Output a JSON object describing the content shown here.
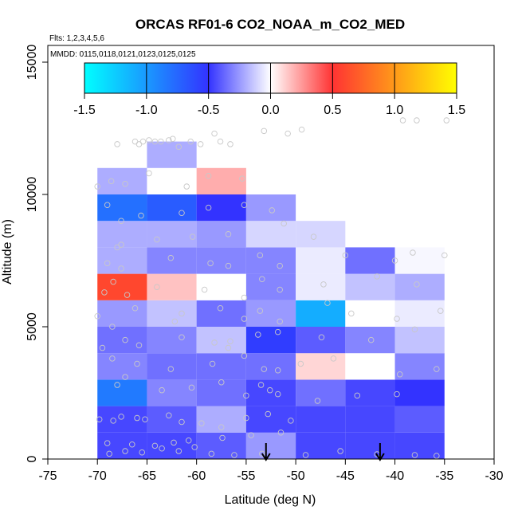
{
  "chart_data": {
    "type": "heatmap",
    "title": "ORCAS RF01-6 CO2_NOAA_m_CO2_MED",
    "subtitle_flights": "Flts: 1,2,3,4,5,6",
    "subtitle_dates": "MMDD: 0115,0118,0121,0123,0125,0125",
    "xlabel": "Latitude (deg N)",
    "ylabel": "Altitude (m)",
    "xlim": [
      -75,
      -30
    ],
    "ylim": [
      0,
      16000
    ],
    "x_ticks": [
      -75,
      -70,
      -65,
      -60,
      -55,
      -50,
      -45,
      -40,
      -35,
      -30
    ],
    "y_ticks": [
      0,
      5000,
      10000,
      15000
    ],
    "colorbar": {
      "min": -1.5,
      "max": 1.5,
      "ticks": [
        "-1.5",
        "-1.0",
        "-0.5",
        "0.0",
        "0.5",
        "1.0",
        "1.5"
      ],
      "stops": [
        "#00ffff",
        "#3333ff",
        "#ffffff",
        "#ff3333",
        "#ffff00"
      ]
    },
    "cell_width_deg": 5,
    "cell_height_m": 1000,
    "cells": [
      {
        "lat": -67.5,
        "alt": 500,
        "value": -0.45
      },
      {
        "lat": -62.5,
        "alt": 500,
        "value": -0.45
      },
      {
        "lat": -57.5,
        "alt": 500,
        "value": -0.4
      },
      {
        "lat": -52.5,
        "alt": 500,
        "value": -0.25
      },
      {
        "lat": -47.5,
        "alt": 500,
        "value": -0.45
      },
      {
        "lat": -42.5,
        "alt": 500,
        "value": -0.45
      },
      {
        "lat": -37.5,
        "alt": 500,
        "value": -0.45
      },
      {
        "lat": -67.5,
        "alt": 1500,
        "value": -0.45
      },
      {
        "lat": -62.5,
        "alt": 1500,
        "value": -0.4
      },
      {
        "lat": -57.5,
        "alt": 1500,
        "value": -0.2
      },
      {
        "lat": -52.5,
        "alt": 1500,
        "value": -0.45
      },
      {
        "lat": -47.5,
        "alt": 1500,
        "value": -0.45
      },
      {
        "lat": -42.5,
        "alt": 1500,
        "value": -0.45
      },
      {
        "lat": -37.5,
        "alt": 1500,
        "value": -0.4
      },
      {
        "lat": -67.5,
        "alt": 2500,
        "value": -0.85
      },
      {
        "lat": -62.5,
        "alt": 2500,
        "value": -0.3
      },
      {
        "lat": -57.5,
        "alt": 2500,
        "value": -0.35
      },
      {
        "lat": -52.5,
        "alt": 2500,
        "value": -0.45
      },
      {
        "lat": -47.5,
        "alt": 2500,
        "value": -0.35
      },
      {
        "lat": -42.5,
        "alt": 2500,
        "value": -0.45
      },
      {
        "lat": -37.5,
        "alt": 2500,
        "value": -0.5
      },
      {
        "lat": -67.5,
        "alt": 3500,
        "value": -0.3
      },
      {
        "lat": -62.5,
        "alt": 3500,
        "value": -0.35
      },
      {
        "lat": -57.5,
        "alt": 3500,
        "value": -0.35
      },
      {
        "lat": -52.5,
        "alt": 3500,
        "value": -0.35
      },
      {
        "lat": -47.5,
        "alt": 3500,
        "value": 0.1
      },
      {
        "lat": -42.5,
        "alt": 3500,
        "value": 0.0
      },
      {
        "lat": -37.5,
        "alt": 3500,
        "value": -0.3
      },
      {
        "lat": -67.5,
        "alt": 4500,
        "value": -0.35
      },
      {
        "lat": -62.5,
        "alt": 4500,
        "value": -0.3
      },
      {
        "lat": -57.5,
        "alt": 4500,
        "value": -0.15
      },
      {
        "lat": -52.5,
        "alt": 4500,
        "value": -0.55
      },
      {
        "lat": -47.5,
        "alt": 4500,
        "value": -0.4
      },
      {
        "lat": -42.5,
        "alt": 4500,
        "value": -0.3
      },
      {
        "lat": -37.5,
        "alt": 4500,
        "value": -0.15
      },
      {
        "lat": -67.5,
        "alt": 5500,
        "value": -0.25
      },
      {
        "lat": -62.5,
        "alt": 5500,
        "value": -0.15
      },
      {
        "lat": -57.5,
        "alt": 5500,
        "value": -0.35
      },
      {
        "lat": -52.5,
        "alt": 5500,
        "value": -0.25
      },
      {
        "lat": -47.5,
        "alt": 5500,
        "value": -1.1
      },
      {
        "lat": -42.5,
        "alt": 5500,
        "value": 0.0
      },
      {
        "lat": -37.5,
        "alt": 5500,
        "value": -0.05
      },
      {
        "lat": -67.5,
        "alt": 6500,
        "value": 0.6
      },
      {
        "lat": -62.5,
        "alt": 6500,
        "value": 0.15
      },
      {
        "lat": -57.5,
        "alt": 6500,
        "value": 0.0
      },
      {
        "lat": -52.5,
        "alt": 6500,
        "value": -0.3
      },
      {
        "lat": -47.5,
        "alt": 6500,
        "value": -0.05
      },
      {
        "lat": -42.5,
        "alt": 6500,
        "value": -0.15
      },
      {
        "lat": -37.5,
        "alt": 6500,
        "value": -0.2
      },
      {
        "lat": -67.5,
        "alt": 7500,
        "value": -0.2
      },
      {
        "lat": -62.5,
        "alt": 7500,
        "value": -0.3
      },
      {
        "lat": -57.5,
        "alt": 7500,
        "value": -0.3
      },
      {
        "lat": -52.5,
        "alt": 7500,
        "value": -0.3
      },
      {
        "lat": -47.5,
        "alt": 7500,
        "value": -0.05
      },
      {
        "lat": -42.5,
        "alt": 7500,
        "value": -0.35
      },
      {
        "lat": -37.5,
        "alt": 7500,
        "value": -0.02
      },
      {
        "lat": -67.5,
        "alt": 8500,
        "value": -0.2
      },
      {
        "lat": -62.5,
        "alt": 8500,
        "value": -0.2
      },
      {
        "lat": -57.5,
        "alt": 8500,
        "value": -0.25
      },
      {
        "lat": -52.5,
        "alt": 8500,
        "value": -0.1
      },
      {
        "lat": -47.5,
        "alt": 8500,
        "value": -0.1
      },
      {
        "lat": -67.5,
        "alt": 9500,
        "value": -0.8
      },
      {
        "lat": -62.5,
        "alt": 9500,
        "value": -0.7
      },
      {
        "lat": -57.5,
        "alt": 9500,
        "value": -0.5
      },
      {
        "lat": -52.5,
        "alt": 9500,
        "value": -0.25
      },
      {
        "lat": -67.5,
        "alt": 10500,
        "value": -0.2
      },
      {
        "lat": -62.5,
        "alt": 10500,
        "value": 0.0
      },
      {
        "lat": -57.5,
        "alt": 10500,
        "value": 0.2
      },
      {
        "lat": -62.5,
        "alt": 11500,
        "value": -0.2
      }
    ],
    "observations": [
      [
        -68.8,
        200
      ],
      [
        -67.2,
        300
      ],
      [
        -65.5,
        250
      ],
      [
        -63.5,
        400
      ],
      [
        -61.8,
        300
      ],
      [
        -60.2,
        450
      ],
      [
        -58.5,
        200
      ],
      [
        -56.2,
        150
      ],
      [
        -53.4,
        200
      ],
      [
        -49,
        150
      ],
      [
        -45.5,
        300
      ],
      [
        -41.8,
        180
      ],
      [
        -38,
        150
      ],
      [
        -35.8,
        120
      ],
      [
        -69,
        600
      ],
      [
        -66.5,
        550
      ],
      [
        -64.2,
        500
      ],
      [
        -62.3,
        620
      ],
      [
        -60.8,
        700
      ],
      [
        -57.4,
        800
      ],
      [
        -54.5,
        900
      ],
      [
        -51.5,
        1000
      ],
      [
        -69.8,
        1500
      ],
      [
        -68.4,
        1450
      ],
      [
        -67.6,
        1600
      ],
      [
        -66,
        1550
      ],
      [
        -65.2,
        1500
      ],
      [
        -62.8,
        1650
      ],
      [
        -61.5,
        1400
      ],
      [
        -59.5,
        1350
      ],
      [
        -57.5,
        1200
      ],
      [
        -55,
        1550
      ],
      [
        -52.8,
        1700
      ],
      [
        -50.5,
        1450
      ],
      [
        -68,
        2800
      ],
      [
        -67.2,
        3100
      ],
      [
        -63.5,
        2600
      ],
      [
        -60.5,
        2700
      ],
      [
        -57.5,
        2900
      ],
      [
        -55,
        2400
      ],
      [
        -53.5,
        2800
      ],
      [
        -52.6,
        2600
      ],
      [
        -51.8,
        2450
      ],
      [
        -47.8,
        2200
      ],
      [
        -43.8,
        2400
      ],
      [
        -39.8,
        2450
      ],
      [
        -68.5,
        3800
      ],
      [
        -66,
        3600
      ],
      [
        -62.6,
        3400
      ],
      [
        -58.4,
        3600
      ],
      [
        -55.2,
        3900
      ],
      [
        -53.2,
        3400
      ],
      [
        -51.8,
        3350
      ],
      [
        -49.5,
        3600
      ],
      [
        -46.2,
        3800
      ],
      [
        -39.5,
        3200
      ],
      [
        -35.8,
        3400
      ],
      [
        -69.5,
        4200
      ],
      [
        -67.2,
        4500
      ],
      [
        -65.8,
        4300
      ],
      [
        -61.5,
        4600
      ],
      [
        -58.2,
        4400
      ],
      [
        -56.8,
        4200
      ],
      [
        -56.6,
        4450
      ],
      [
        -53.8,
        4700
      ],
      [
        -51.8,
        4800
      ],
      [
        -47.4,
        4600
      ],
      [
        -42.4,
        4500
      ],
      [
        -38,
        4900
      ],
      [
        -70,
        5400
      ],
      [
        -68.5,
        5000
      ],
      [
        -66.2,
        5700
      ],
      [
        -62.2,
        5200
      ],
      [
        -61.5,
        5500
      ],
      [
        -57.6,
        5700
      ],
      [
        -55.2,
        5300
      ],
      [
        -53.6,
        5600
      ],
      [
        -51.6,
        5200
      ],
      [
        -46.8,
        5900
      ],
      [
        -44.4,
        5500
      ],
      [
        -39.8,
        5300
      ],
      [
        -35.4,
        5600
      ],
      [
        -69.3,
        6300
      ],
      [
        -68.4,
        6700
      ],
      [
        -67,
        6200
      ],
      [
        -64,
        6500
      ],
      [
        -59.2,
        6400
      ],
      [
        -55.2,
        6100
      ],
      [
        -53.4,
        6800
      ],
      [
        -51.6,
        6400
      ],
      [
        -47.2,
        6600
      ],
      [
        -41.8,
        6900
      ],
      [
        -37.8,
        6600
      ],
      [
        -69,
        7400
      ],
      [
        -67.6,
        7200
      ],
      [
        -62.6,
        7600
      ],
      [
        -58.6,
        7400
      ],
      [
        -56.8,
        7300
      ],
      [
        -53.6,
        7700
      ],
      [
        -51.6,
        7300
      ],
      [
        -45,
        7700
      ],
      [
        -40,
        7500
      ],
      [
        -38.2,
        7800
      ],
      [
        -35,
        7700
      ],
      [
        -68,
        8000
      ],
      [
        -67.6,
        8100
      ],
      [
        -64,
        8300
      ],
      [
        -60.4,
        8400
      ],
      [
        -56.8,
        8500
      ],
      [
        -51.2,
        8900
      ],
      [
        -48.2,
        8400
      ],
      [
        -69,
        9600
      ],
      [
        -67.6,
        9000
      ],
      [
        -65.6,
        9200
      ],
      [
        -61.5,
        9300
      ],
      [
        -58.8,
        9500
      ],
      [
        -55.2,
        9600
      ],
      [
        -52.4,
        9400
      ],
      [
        -70,
        10300
      ],
      [
        -68.6,
        10500
      ],
      [
        -67.2,
        10400
      ],
      [
        -64.8,
        10800
      ],
      [
        -61,
        10300
      ],
      [
        -58.8,
        10700
      ],
      [
        -55.4,
        10600
      ],
      [
        -68,
        11900
      ],
      [
        -66.2,
        12000
      ],
      [
        -65.8,
        11900
      ],
      [
        -65.4,
        12000
      ],
      [
        -64.8,
        12050
      ],
      [
        -64.2,
        12000
      ],
      [
        -63.6,
        12000
      ],
      [
        -62.8,
        12050
      ],
      [
        -62.4,
        12100
      ],
      [
        -61.8,
        11800
      ],
      [
        -60.6,
        12000
      ],
      [
        -59.6,
        11900
      ],
      [
        -58.2,
        12300
      ],
      [
        -57.6,
        12000
      ],
      [
        -56.6,
        11900
      ],
      [
        -53.2,
        12400
      ],
      [
        -50.8,
        12300
      ],
      [
        -49.4,
        12450
      ],
      [
        -39.2,
        12800
      ],
      [
        -37.8,
        12800
      ],
      [
        -34.8,
        12800
      ]
    ],
    "arrows_lat": [
      -53,
      -41.5
    ]
  }
}
